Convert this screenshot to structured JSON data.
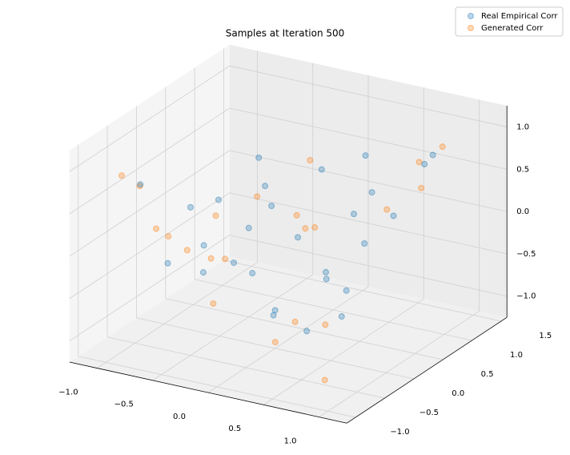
{
  "chart_data": {
    "type": "scatter3d",
    "title": "Samples at Iteration 500",
    "xlim": [
      -1.25,
      1.25
    ],
    "ylim": [
      -1.15,
      1.6
    ],
    "zlim": [
      -1.25,
      1.25
    ],
    "xticks": [
      {
        "value": -1,
        "label": "−1.0"
      },
      {
        "value": -0.5,
        "label": "−0.5"
      },
      {
        "value": 0,
        "label": "0.0"
      },
      0.5,
      {
        "value": 1,
        "label": "1.0"
      }
    ],
    "yticks": [
      {
        "value": -1,
        "label": "−1.0"
      },
      {
        "value": -0.5,
        "label": "−0.5"
      },
      {
        "value": 0,
        "label": "0.0"
      },
      0.5,
      {
        "value": 1,
        "label": "1.0"
      },
      1.5
    ],
    "zticks": [
      {
        "value": -1,
        "label": "−1.0"
      },
      {
        "value": -0.5,
        "label": "−0.5"
      },
      {
        "value": 0,
        "label": "0.0"
      },
      0.5,
      {
        "value": 1,
        "label": "1.0"
      }
    ],
    "grid": true,
    "legend": "upper right",
    "series": [
      {
        "name": "Real Empirical Corr",
        "color": "#1f77b4",
        "x": [
          0.1,
          0.5,
          -0.5,
          0.9,
          -0.8,
          0.3,
          -0.3,
          0.7,
          0.0,
          0.6,
          -0.9,
          0.4,
          -0.2,
          0.8,
          -0.6,
          0.2,
          -0.4,
          0.95,
          0.1,
          -0.7,
          0.5,
          -0.1,
          0.3,
          0.6,
          -0.5,
          0.0,
          0.7,
          -0.3
        ],
        "y": [
          0.2,
          0.4,
          0.5,
          0.85,
          0.3,
          -0.6,
          -0.4,
          0.2,
          0.8,
          0.0,
          -0.6,
          0.9,
          0.1,
          -0.3,
          -0.7,
          0.5,
          0.7,
          0.9,
          -0.9,
          0.1,
          0.6,
          -0.2,
          0.3,
          -0.6,
          -0.5,
          0.0,
          0.7,
          0.4
        ],
        "z": [
          0.0,
          0.3,
          -0.2,
          0.8,
          -0.4,
          -0.5,
          0.6,
          0.1,
          0.5,
          -0.7,
          0.7,
          0.3,
          0.9,
          -0.2,
          -0.1,
          -0.6,
          0.0,
          0.9,
          0.2,
          -0.6,
          0.9,
          -0.3,
          -0.4,
          -0.6,
          0.5,
          -0.8,
          0.2,
          0.4
        ]
      },
      {
        "name": "Generated Corr",
        "color": "#ff7f0e",
        "x": [
          1.0,
          -0.95,
          -0.9,
          0.92,
          -0.85,
          0.2,
          0.6,
          -0.7,
          0.85,
          -0.2,
          0.4,
          -0.6,
          0.95,
          -0.95,
          0.1,
          -1.05,
          0.5,
          -0.4,
          0.8,
          -0.8,
          0.0,
          0.3
        ],
        "y": [
          0.97,
          0.95,
          -0.92,
          -0.9,
          0.6,
          0.3,
          -0.8,
          -0.5,
          0.3,
          0.9,
          0.1,
          -0.9,
          0.7,
          0.3,
          -0.5,
          0.9,
          -0.95,
          -0.3,
          0.95,
          -0.8,
          0.6,
          -0.2
        ],
        "z": [
          0.98,
          -0.9,
          0.95,
          -0.95,
          -0.2,
          0.1,
          -0.4,
          0.1,
          0.5,
          -0.3,
          -0.9,
          0.4,
          0.6,
          -0.5,
          0.8,
          -0.9,
          -0.6,
          -0.7,
          0.75,
          0.8,
          0.7,
          0.5
        ]
      }
    ]
  }
}
